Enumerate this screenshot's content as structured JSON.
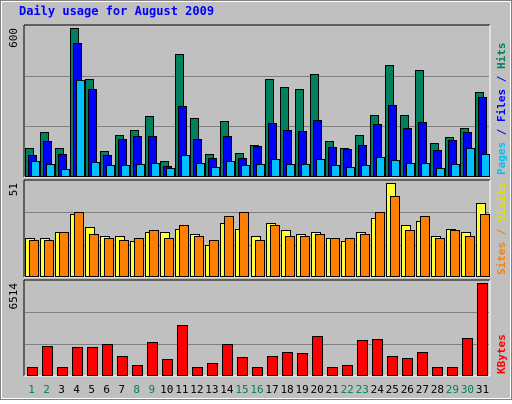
{
  "chart_data": {
    "type": "bar",
    "title": "Daily usage for August 2009",
    "categories": [
      "1",
      "2",
      "3",
      "4",
      "5",
      "6",
      "7",
      "8",
      "9",
      "10",
      "11",
      "12",
      "13",
      "14",
      "15",
      "16",
      "17",
      "18",
      "19",
      "20",
      "21",
      "22",
      "23",
      "24",
      "25",
      "26",
      "27",
      "28",
      "29",
      "30",
      "31"
    ],
    "weekend_days": [
      "1",
      "2",
      "8",
      "9",
      "15",
      "16",
      "22",
      "23",
      "29",
      "30"
    ],
    "panels": [
      {
        "id": "pages-files-hits",
        "axis_max_label": "600",
        "ymax": 600,
        "right_labels": [
          {
            "text": "Hits",
            "color": "#00805c"
          },
          {
            "text": " / ",
            "color": "#0000ff"
          },
          {
            "text": "Files",
            "color": "#0000ff"
          },
          {
            "text": " / ",
            "color": "#0000ff"
          },
          {
            "text": "Pages",
            "color": "#00c0ff"
          }
        ],
        "series": [
          {
            "name": "Hits",
            "color": "#00805c",
            "values": [
              114,
              179,
              112,
              600,
              395,
              100,
              168,
              185,
              243,
              61,
              495,
              235,
              88,
              222,
              94,
              127,
              395,
              359,
              352,
              412,
              142,
              115,
              165,
              249,
              450,
              249,
              428,
              135,
              160,
              196,
              340
            ]
          },
          {
            "name": "Files",
            "color": "#0000ff",
            "values": [
              84,
              140,
              91,
              538,
              352,
              86,
              150,
              164,
              161,
              40,
              285,
              149,
              73,
              162,
              71,
              120,
              214,
              187,
              182,
              229,
              118,
              108,
              124,
              210,
              289,
              195,
              218,
              107,
              145,
              177,
              322
            ]
          },
          {
            "name": "Pages",
            "color": "#00c0ff",
            "values": [
              61,
              48,
              29,
              389,
              57,
              45,
              45,
              49,
              52,
              32,
              87,
              52,
              38,
              60,
              44,
              49,
              67,
              49,
              49,
              67,
              46,
              35,
              46,
              75,
              64,
              53,
              51,
              33,
              48,
              115,
              91
            ]
          }
        ]
      },
      {
        "id": "visits-sites",
        "axis_max_label": "51",
        "ymax": 51,
        "right_labels": [
          {
            "text": "Visits",
            "color": "#e0e000"
          },
          {
            "text": " / ",
            "color": "#ff8000"
          },
          {
            "text": "Sites",
            "color": "#ff8000"
          }
        ],
        "series": [
          {
            "name": "Visits",
            "color": "#ffff33",
            "values": [
              21,
              21,
              24,
              34,
              27,
              22,
              22,
              19,
              24,
              24,
              26,
              23,
              17,
              29,
              26,
              22,
              29,
              25,
              23,
              24,
              21,
              19,
              24,
              32,
              51,
              28,
              30,
              22,
              26,
              24,
              40
            ]
          },
          {
            "name": "Sites",
            "color": "#ff8000",
            "values": [
              20,
              20,
              24,
              35,
              23,
              21,
              20,
              21,
              25,
              21,
              28,
              22,
              20,
              33,
              35,
              20,
              28,
              22,
              22,
              23,
              21,
              21,
              23,
              35,
              44,
              25,
              33,
              21,
              25,
              22,
              34
            ]
          }
        ]
      },
      {
        "id": "kbytes",
        "axis_max_label": "6514",
        "ymax": 6514,
        "right_labels": [
          {
            "text": "KBytes",
            "color": "#ff0000"
          }
        ],
        "series": [
          {
            "name": "KBytes",
            "color": "#ff0000",
            "values": [
              580,
              2060,
              590,
              1950,
              1950,
              2160,
              1380,
              710,
              2330,
              1100,
              3560,
              600,
              850,
              2220,
              1270,
              590,
              1340,
              1620,
              1540,
              2770,
              590,
              720,
              2450,
              2550,
              1380,
              1230,
              1600,
              540,
              600,
              2600,
              6514
            ]
          }
        ]
      }
    ]
  }
}
